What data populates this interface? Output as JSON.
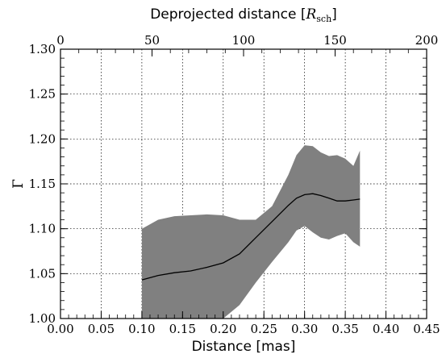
{
  "chart_data": {
    "type": "area",
    "xlabel": "Distance [mas]",
    "ylabel": "Γ",
    "top_xlabel": {
      "text": "Deprojected distance [",
      "symbol": "R",
      "subscript": "sch",
      "close": "]"
    },
    "xlim": [
      0.0,
      0.45
    ],
    "ylim": [
      1.0,
      1.3
    ],
    "top_xlim": [
      0,
      200
    ],
    "grid": true,
    "x_ticks": [
      "0.00",
      "0.05",
      "0.10",
      "0.15",
      "0.20",
      "0.25",
      "0.30",
      "0.35",
      "0.40",
      "0.45"
    ],
    "y_ticks": [
      "1.00",
      "1.05",
      "1.10",
      "1.15",
      "1.20",
      "1.25",
      "1.30"
    ],
    "top_ticks": [
      "0",
      "50",
      "100",
      "150",
      "200"
    ],
    "colors": {
      "band": "#808080",
      "line": "#000000",
      "grid": "#000000"
    },
    "series": [
      {
        "kind": "band",
        "x": [
          0.1,
          0.12,
          0.14,
          0.16,
          0.18,
          0.2,
          0.22,
          0.24,
          0.26,
          0.28,
          0.29,
          0.3,
          0.31,
          0.32,
          0.33,
          0.34,
          0.35,
          0.36,
          0.368
        ],
        "y_upper": [
          1.1,
          1.11,
          1.114,
          1.115,
          1.116,
          1.115,
          1.11,
          1.11,
          1.125,
          1.16,
          1.182,
          1.193,
          1.192,
          1.185,
          1.181,
          1.182,
          1.178,
          1.17,
          1.187
        ],
        "y_lower": [
          1.0,
          1.0,
          1.0,
          1.0,
          1.0,
          1.0,
          1.015,
          1.04,
          1.063,
          1.085,
          1.098,
          1.103,
          1.096,
          1.09,
          1.088,
          1.092,
          1.095,
          1.085,
          1.08
        ]
      },
      {
        "kind": "line",
        "x": [
          0.1,
          0.12,
          0.14,
          0.16,
          0.18,
          0.2,
          0.22,
          0.24,
          0.26,
          0.28,
          0.29,
          0.3,
          0.31,
          0.32,
          0.33,
          0.34,
          0.35,
          0.36,
          0.368
        ],
        "y": [
          1.043,
          1.048,
          1.051,
          1.053,
          1.057,
          1.062,
          1.072,
          1.09,
          1.108,
          1.126,
          1.134,
          1.138,
          1.139,
          1.137,
          1.134,
          1.131,
          1.131,
          1.132,
          1.133
        ]
      }
    ]
  }
}
